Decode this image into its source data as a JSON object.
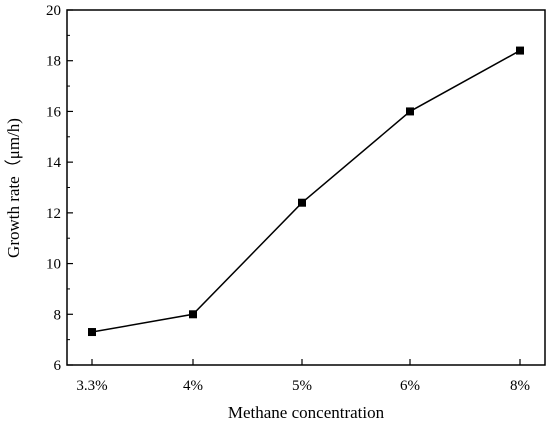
{
  "chart_data": {
    "type": "line",
    "categories": [
      "3.3%",
      "4%",
      "5%",
      "6%",
      "8%"
    ],
    "values": [
      7.3,
      8.0,
      12.4,
      16.0,
      18.4
    ],
    "xlabel": "Methane concentration",
    "ylabel": "Growth rate（μm/h)",
    "ylim": [
      6,
      20
    ],
    "yticks": [
      6,
      8,
      10,
      12,
      14,
      16,
      18,
      20
    ],
    "grid": false,
    "marker": "square",
    "line_color": "#000000"
  }
}
